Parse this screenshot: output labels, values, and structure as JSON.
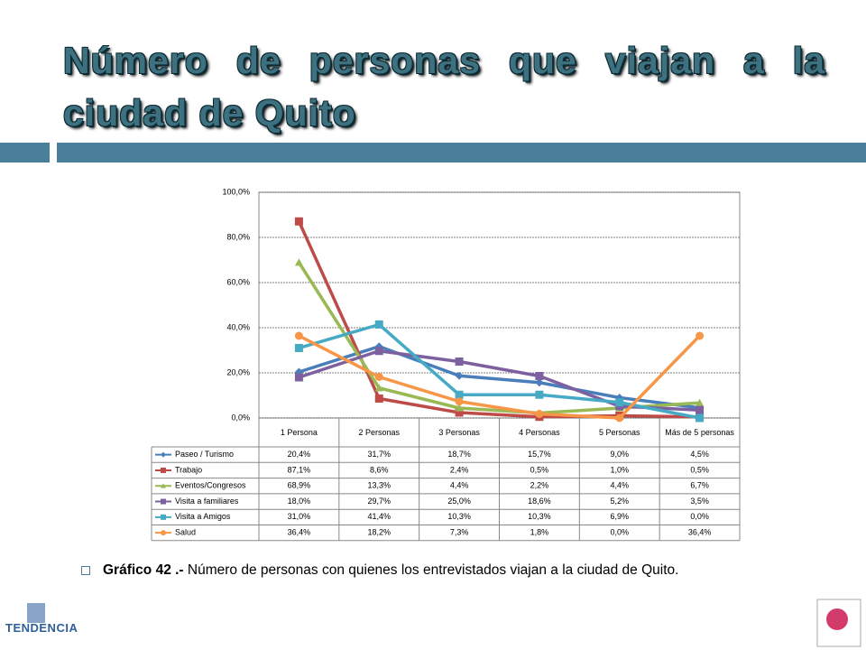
{
  "page_title": "Número de personas que viajan a la ciudad de Quito",
  "caption": {
    "label": "Gráfico 42 .-",
    "text": "Número de personas con quienes los entrevistados viajan a la ciudad de Quito."
  },
  "logo": "TENDENCIA",
  "chart_data": {
    "type": "line",
    "categories": [
      "1 Persona",
      "2 Personas",
      "3 Personas",
      "4 Personas",
      "5 Personas",
      "Más de 5 personas"
    ],
    "ylim": [
      0,
      100
    ],
    "yticks": [
      {
        "value": 0,
        "label": "0,0%"
      },
      {
        "value": 20,
        "label": "20,0%"
      },
      {
        "value": 40,
        "label": "40,0%"
      },
      {
        "value": 60,
        "label": "60,0%"
      },
      {
        "value": 80,
        "label": "80,0%"
      },
      {
        "value": 100,
        "label": "100,0%"
      }
    ],
    "grid": true,
    "series": [
      {
        "name": "Paseo / Turismo",
        "color": "#4a7ebb",
        "marker": "diamond",
        "values": [
          20.4,
          31.7,
          18.7,
          15.7,
          9.0,
          4.5
        ],
        "value_labels": [
          "20,4%",
          "31,7%",
          "18,7%",
          "15,7%",
          "9,0%",
          "4,5%"
        ]
      },
      {
        "name": "Trabajo",
        "color": "#be4b48",
        "marker": "square",
        "values": [
          87.1,
          8.6,
          2.4,
          0.5,
          1.0,
          0.5
        ],
        "value_labels": [
          "87,1%",
          "8,6%",
          "2,4%",
          "0,5%",
          "1,0%",
          "0,5%"
        ]
      },
      {
        "name": "Eventos/Congresos",
        "color": "#98b954",
        "marker": "triangle",
        "values": [
          68.9,
          13.3,
          4.4,
          2.2,
          4.4,
          6.7
        ],
        "value_labels": [
          "68,9%",
          "13,3%",
          "4,4%",
          "2,2%",
          "4,4%",
          "6,7%"
        ]
      },
      {
        "name": "Visita a familiares",
        "color": "#7d60a0",
        "marker": "square",
        "values": [
          18.0,
          29.7,
          25.0,
          18.6,
          5.2,
          3.5
        ],
        "value_labels": [
          "18,0%",
          "29,7%",
          "25,0%",
          "18,6%",
          "5,2%",
          "3,5%"
        ]
      },
      {
        "name": "Visita a Amigos",
        "color": "#46aac5",
        "marker": "square",
        "values": [
          31.0,
          41.4,
          10.3,
          10.3,
          6.9,
          0.0
        ],
        "value_labels": [
          "31,0%",
          "41,4%",
          "10,3%",
          "10,3%",
          "6,9%",
          "0,0%"
        ]
      },
      {
        "name": "Salud",
        "color": "#f79646",
        "marker": "circle",
        "values": [
          36.4,
          18.2,
          7.3,
          1.8,
          0.0,
          36.4
        ],
        "value_labels": [
          "36,4%",
          "18,2%",
          "7,3%",
          "1,8%",
          "0,0%",
          "36,4%"
        ]
      }
    ]
  }
}
